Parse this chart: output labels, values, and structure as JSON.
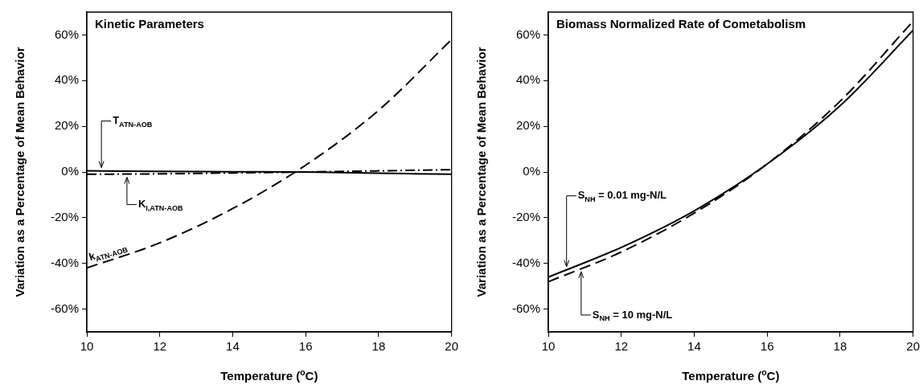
{
  "chart_data": [
    {
      "type": "line",
      "title": "Kinetic Parameters",
      "xlabel": "Temperature ($^{o}$C)",
      "ylabel": "Variation as a Percentage of Mean Behavior",
      "x": [
        10,
        12,
        14,
        16,
        18,
        20
      ],
      "series": [
        {
          "color": "#000000",
          "line_style": "dashed",
          "values": [
            -42,
            -31,
            -16,
            3,
            27,
            58
          ]
        },
        {
          "color": "#000000",
          "line_style": "solid",
          "values": [
            0.5,
            0.3,
            0.1,
            0,
            -0.5,
            -1
          ]
        },
        {
          "color": "#000000",
          "line_style": "dashdot",
          "values": [
            -1,
            -0.8,
            -0.4,
            0,
            0.5,
            1
          ]
        }
      ],
      "xlim": [
        10,
        20
      ],
      "xticks": [
        10,
        12,
        14,
        16,
        18,
        20
      ],
      "ylim": [
        -70,
        70
      ],
      "yticks": [
        {
          "value": -60,
          "label": "-60%"
        },
        {
          "value": -40,
          "label": "-40%"
        },
        {
          "value": -20,
          "label": "-20%"
        },
        {
          "value": 0,
          "label": "0%"
        },
        {
          "value": 20,
          "label": "20%"
        },
        {
          "value": 40,
          "label": "40%"
        },
        {
          "value": 60,
          "label": "60%"
        }
      ],
      "annotations": [
        {
          "text": "T$_{ATN-AOB}$",
          "x": 10.4,
          "y": 0.5
        },
        {
          "text": "K$_{I,ATN-AOB}$",
          "x": 11.1,
          "y": -0.9
        },
        {
          "text": "k$_{ATN-AOB}$",
          "x": 10.7,
          "y": -38
        }
      ],
      "marker": "none"
    },
    {
      "type": "line",
      "title": "Biomass Normalized Rate of Cometabolism",
      "xlabel": "Temperature ($^{o}$C)",
      "ylabel": "Variation as a Percentage of Mean Behavior",
      "x": [
        10,
        12,
        14,
        16,
        18,
        20
      ],
      "series": [
        {
          "color": "#000000",
          "line_style": "solid",
          "values": [
            -46,
            -33,
            -17,
            3.5,
            29,
            62
          ]
        },
        {
          "color": "#000000",
          "line_style": "dashed",
          "values": [
            -48,
            -35,
            -18,
            3.5,
            31,
            66
          ]
        }
      ],
      "xlim": [
        10,
        20
      ],
      "xticks": [
        10,
        12,
        14,
        16,
        18,
        20
      ],
      "ylim": [
        -70,
        70
      ],
      "yticks": [
        {
          "value": -60,
          "label": "-60%"
        },
        {
          "value": -40,
          "label": "-40%"
        },
        {
          "value": -20,
          "label": "-20%"
        },
        {
          "value": 0,
          "label": "0%"
        },
        {
          "value": 20,
          "label": "20%"
        },
        {
          "value": 40,
          "label": "40%"
        },
        {
          "value": 60,
          "label": "60%"
        }
      ],
      "annotations": [
        {
          "text": "S$_{NH}$ = 0.01 mg-N/L",
          "x": 10.5,
          "y": -42.8
        },
        {
          "text": "S$_{NH}$ = 10 mg-N/L",
          "x": 10.9,
          "y": -42.2
        }
      ],
      "marker": "none"
    }
  ]
}
